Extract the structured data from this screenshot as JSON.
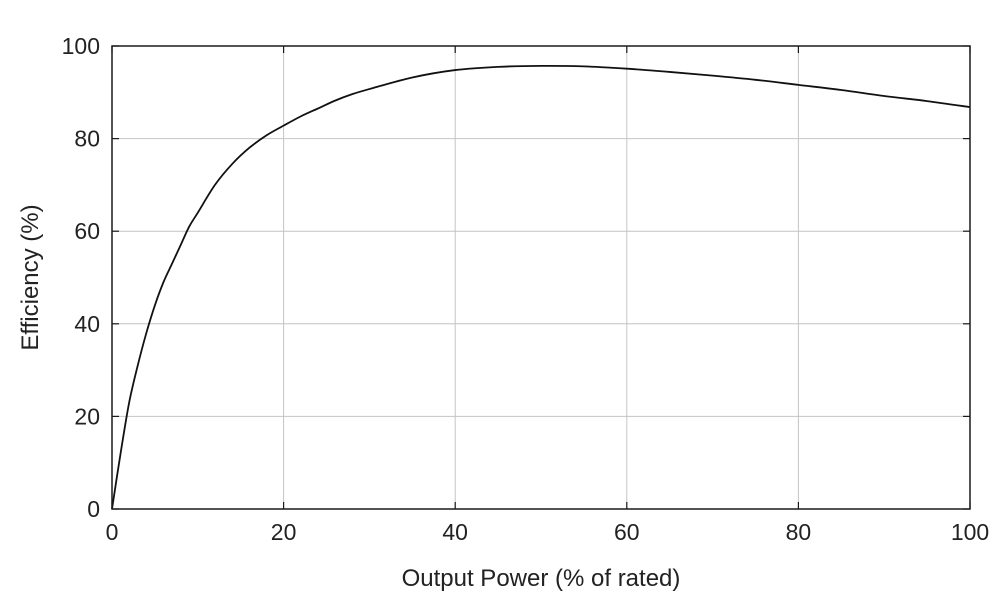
{
  "chart_data": {
    "type": "line",
    "xlabel": "Output Power (% of rated)",
    "ylabel": "Efficiency (%)",
    "xlim": [
      0,
      100
    ],
    "ylim": [
      0,
      100
    ],
    "x_ticks": [
      0,
      20,
      40,
      60,
      80,
      100
    ],
    "y_ticks": [
      0,
      20,
      40,
      60,
      80,
      100
    ],
    "grid": true,
    "series": [
      {
        "color": "#111111",
        "x": [
          0,
          1,
          2,
          3,
          4,
          5,
          6,
          7,
          8,
          9,
          10,
          12,
          14,
          16,
          18,
          20,
          22,
          24,
          26,
          28,
          30,
          35,
          40,
          45,
          50,
          55,
          60,
          65,
          70,
          75,
          80,
          85,
          90,
          95,
          100
        ],
        "y": [
          0,
          12,
          23,
          31,
          38,
          44,
          49,
          53,
          57,
          61,
          64,
          70,
          74.5,
          78,
          80.7,
          82.8,
          84.8,
          86.5,
          88.2,
          89.6,
          90.7,
          93.2,
          94.8,
          95.5,
          95.7,
          95.6,
          95.1,
          94.4,
          93.6,
          92.7,
          91.6,
          90.5,
          89.2,
          88.1,
          86.8
        ]
      }
    ]
  }
}
